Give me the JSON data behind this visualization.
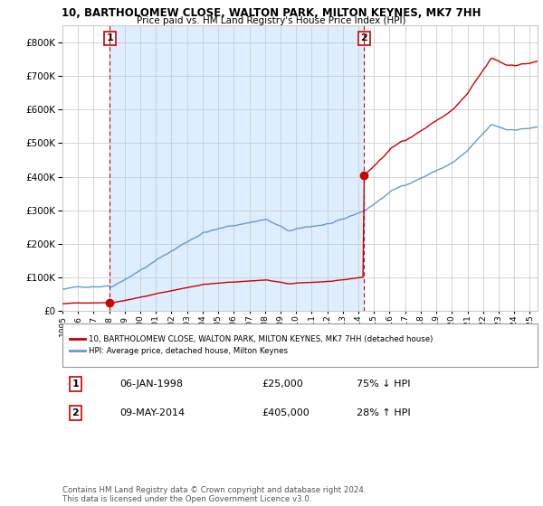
{
  "title": "10, BARTHOLOMEW CLOSE, WALTON PARK, MILTON KEYNES, MK7 7HH",
  "subtitle": "Price paid vs. HM Land Registry's House Price Index (HPI)",
  "ylim": [
    0,
    850000
  ],
  "yticks": [
    0,
    100000,
    200000,
    300000,
    400000,
    500000,
    600000,
    700000,
    800000
  ],
  "legend_entry1": "10, BARTHOLOMEW CLOSE, WALTON PARK, MILTON KEYNES, MK7 7HH (detached house)",
  "legend_entry2": "HPI: Average price, detached house, Milton Keynes",
  "sale1_date": "06-JAN-1998",
  "sale1_price": "£25,000",
  "sale1_hpi": "75% ↓ HPI",
  "sale2_date": "09-MAY-2014",
  "sale2_price": "£405,000",
  "sale2_hpi": "28% ↑ HPI",
  "footnote": "Contains HM Land Registry data © Crown copyright and database right 2024.\nThis data is licensed under the Open Government Licence v3.0.",
  "property_color": "#cc0000",
  "hpi_color": "#6699cc",
  "vline_color": "#cc0000",
  "shade_color": "#ddeeff",
  "background_color": "#ffffff",
  "grid_color": "#cccccc",
  "sale1_year": 1998.04,
  "sale1_price_val": 25000,
  "sale2_year": 2014.37,
  "sale2_price_val": 405000,
  "xmin": 1995,
  "xmax": 2025.5
}
